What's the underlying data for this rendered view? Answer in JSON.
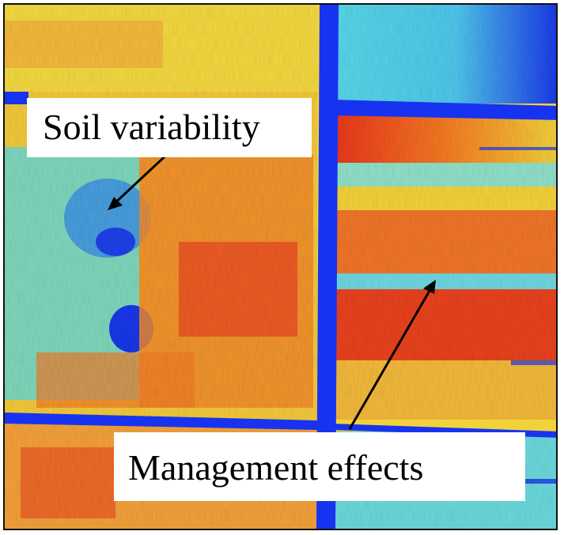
{
  "image": {
    "description_type": "false-color field map",
    "palette": {
      "red": "#e8331e",
      "orange": "#f47a22",
      "yellow": "#f2d23a",
      "cyan": "#58d7e8",
      "blue": "#1a37e8",
      "road": "#1833f0"
    }
  },
  "annotations": {
    "soil": {
      "text": "Soil variability"
    },
    "management": {
      "text": "Management effects"
    }
  }
}
